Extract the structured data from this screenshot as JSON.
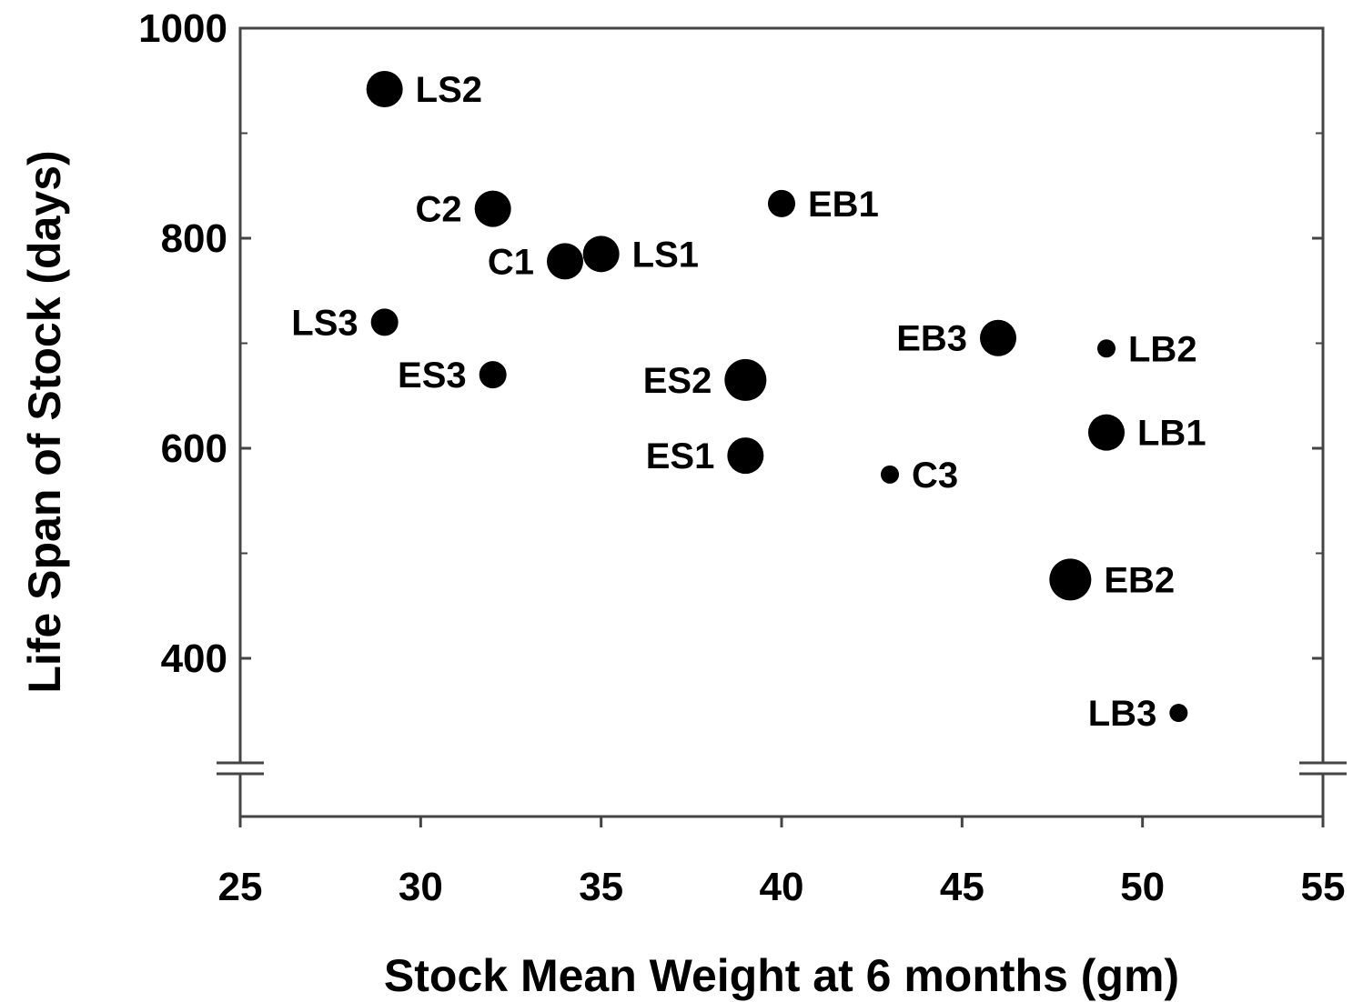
{
  "chart_data": {
    "type": "scatter",
    "title": "",
    "xlabel": "Stock Mean Weight at 6 months (gm)",
    "ylabel": "Life Span of Stock (days)",
    "xlim": [
      25,
      55
    ],
    "ylim": [
      250,
      1000
    ],
    "y_axis_break": true,
    "grid": false,
    "legend": "none",
    "marker_color": "#000000",
    "x_ticks": [
      "25",
      "30",
      "35",
      "40",
      "45",
      "50",
      "55"
    ],
    "y_ticks": [
      "400",
      "600",
      "800",
      "1000"
    ],
    "points": [
      {
        "label": "LS2",
        "x": 29,
        "y": 942,
        "marker": "large",
        "label_side": "right"
      },
      {
        "label": "C2",
        "x": 32,
        "y": 828,
        "marker": "large",
        "label_side": "left"
      },
      {
        "label": "EB1",
        "x": 40,
        "y": 833,
        "marker": "medium",
        "label_side": "right"
      },
      {
        "label": "C1",
        "x": 34,
        "y": 778,
        "marker": "large",
        "label_side": "left"
      },
      {
        "label": "LS1",
        "x": 35,
        "y": 785,
        "marker": "large",
        "label_side": "right"
      },
      {
        "label": "LS3",
        "x": 29,
        "y": 720,
        "marker": "medium",
        "label_side": "left"
      },
      {
        "label": "EB3",
        "x": 46,
        "y": 705,
        "marker": "large",
        "label_side": "left"
      },
      {
        "label": "LB2",
        "x": 49,
        "y": 695,
        "marker": "small",
        "label_side": "right"
      },
      {
        "label": "ES3",
        "x": 32,
        "y": 670,
        "marker": "medium",
        "label_side": "left"
      },
      {
        "label": "ES2",
        "x": 39,
        "y": 665,
        "marker": "xlarge",
        "label_side": "left"
      },
      {
        "label": "LB1",
        "x": 49,
        "y": 615,
        "marker": "large",
        "label_side": "right"
      },
      {
        "label": "ES1",
        "x": 39,
        "y": 593,
        "marker": "large",
        "label_side": "left"
      },
      {
        "label": "C3",
        "x": 43,
        "y": 575,
        "marker": "small",
        "label_side": "right"
      },
      {
        "label": "EB2",
        "x": 48,
        "y": 475,
        "marker": "xlarge",
        "label_side": "right"
      },
      {
        "label": "LB3",
        "x": 51,
        "y": 348,
        "marker": "small",
        "label_side": "left"
      }
    ]
  }
}
